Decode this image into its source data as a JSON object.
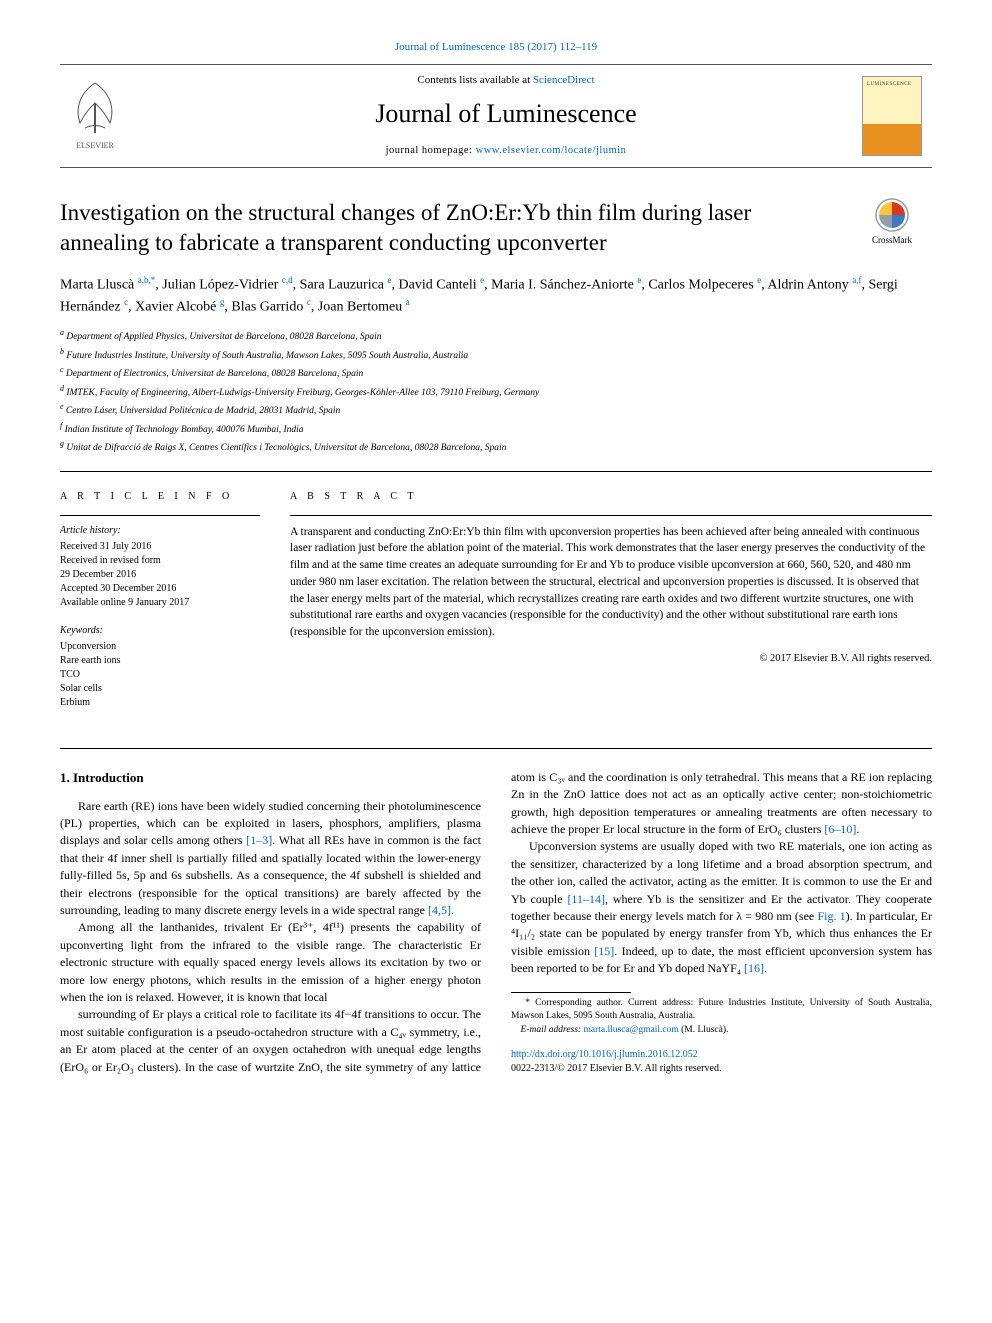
{
  "top_link": {
    "text": "Journal of Luminescence 185 (2017) 112–119",
    "href": "#"
  },
  "masthead": {
    "contents_prefix": "Contents lists available at ",
    "contents_link": "ScienceDirect",
    "journal_name": "Journal of Luminescence",
    "homepage_prefix": "journal homepage: ",
    "homepage_link": "www.elsevier.com/locate/jlumin",
    "elsevier_fill": "#ff7a00",
    "cover_top": "#fff4c0",
    "cover_bottom": "#e89020"
  },
  "crossmark_label": "CrossMark",
  "title": "Investigation on the structural changes of ZnO:Er:Yb thin film during laser annealing to fabricate a transparent conducting upconverter",
  "authors_html": "Marta Lluscà <sup>a,b,*</sup>, Julian López-Vidrier <sup>c,d</sup>, Sara Lauzurica <sup>e</sup>, David Canteli <sup>e</sup>, Maria I. Sánchez-Aniorte <sup>e</sup>, Carlos Molpeceres <sup>e</sup>, Aldrin Antony <sup>a,f</sup>, Sergi Hernández <sup>c</sup>, Xavier Alcobé <sup>g</sup>, Blas Garrido <sup>c</sup>, Joan Bertomeu <sup>a</sup>",
  "affiliations": [
    {
      "sup": "a",
      "text": "Department of Applied Physics, Universitat de Barcelona, 08028 Barcelona, Spain"
    },
    {
      "sup": "b",
      "text": "Future Industries Institute, University of South Australia, Mawson Lakes, 5095 South Australia, Australia"
    },
    {
      "sup": "c",
      "text": "Department of Electronics, Universitat de Barcelona, 08028 Barcelona, Spain"
    },
    {
      "sup": "d",
      "text": "IMTEK, Faculty of Engineering, Albert-Ludwigs-University Freiburg, Georges-Köhler-Allee 103, 79110 Freiburg, Germany"
    },
    {
      "sup": "e",
      "text": "Centro Láser, Universidad Politécnica de Madrid, 28031 Madrid, Spain"
    },
    {
      "sup": "f",
      "text": "Indian Institute of Technology Bombay, 400076 Mumbai, India"
    },
    {
      "sup": "g",
      "text": "Unitat de Difracció de Raigs X, Centres Científics i Tecnològics, Universitat de Barcelona, 08028 Barcelona, Spain"
    }
  ],
  "article_info": {
    "head": "A R T I C L E  I N F O",
    "history_label": "Article history:",
    "history": [
      "Received 31 July 2016",
      "Received in revised form",
      "29 December 2016",
      "Accepted 30 December 2016",
      "Available online 9 January 2017"
    ],
    "keywords_label": "Keywords:",
    "keywords": [
      "Upconversion",
      "Rare earth ions",
      "TCO",
      "Solar cells",
      "Erbium"
    ]
  },
  "abstract": {
    "head": "A B S T R A C T",
    "text": "A transparent and conducting ZnO:Er:Yb thin film with upconversion properties has been achieved after being annealed with continuous laser radiation just before the ablation point of the material. This work demonstrates that the laser energy preserves the conductivity of the film and at the same time creates an adequate surrounding for Er and Yb to produce visible upconversion at 660, 560, 520, and 480 nm under 980 nm laser excitation. The relation between the structural, electrical and upconversion properties is discussed. It is observed that the laser energy melts part of the material, which recrystallizes creating rare earth oxides and two different wurtzite structures, one with substitutional rare earths and oxygen vacancies (responsible for the conductivity) and the other without substitutional rare earth ions (responsible for the upconversion emission).",
    "copyright": "© 2017 Elsevier B.V. All rights reserved."
  },
  "intro": {
    "heading": "1.  Introduction",
    "paragraphs": [
      "Rare earth (RE) ions have been widely studied concerning their photoluminescence (PL) properties, which can be exploited in lasers, phosphors, amplifiers, plasma displays and solar cells among others [1–3]. What all REs have in common is the fact that their 4f inner shell is partially filled and spatially located within the lower-energy fully-filled 5s, 5p and 6s subshells. As a consequence, the 4f subshell is shielded and their electrons (responsible for the optical transitions) are barely affected by the surrounding, leading to many discrete energy levels in a wide spectral range [4,5].",
      "Among all the lanthanides, trivalent Er (Er³⁺, 4f¹¹) presents the capability of upconverting light from the infrared to the visible range. The characteristic Er electronic structure with equally spaced energy levels allows its excitation by two or more low energy photons, which results in the emission of a higher energy photon when the ion is relaxed. However, it is known that local",
      "surrounding of Er plays a critical role to facilitate its 4f−4f transitions to occur. The most suitable configuration is a pseudo-octahedron structure with a C₄ᵥ symmetry, i.e., an Er atom placed at the center of an oxygen octahedron with unequal edge lengths (ErO₆ or Er₂O₃ clusters). In the case of wurtzite ZnO, the site symmetry of any lattice atom is C₃ᵥ and the coordination is only tetrahedral. This means that a RE ion replacing Zn in the ZnO lattice does not act as an optically active center; non-stoichiometric growth, high deposition temperatures or annealing treatments are often necessary to achieve the proper Er local structure in the form of ErO₆ clusters [6–10].",
      "Upconversion systems are usually doped with two RE materials, one ion acting as the sensitizer, characterized by a long lifetime and a broad absorption spectrum, and the other ion, called the activator, acting as the emitter. It is common to use the Er and Yb couple [11–14], where Yb is the sensitizer and Er the activator. They cooperate together because their energy levels match for λ = 980 nm (see Fig. 1). In particular, Er ⁴I₁₁/₂ state can be populated by energy transfer from Yb, which thus enhances the Er visible emission [15]. Indeed, up to date, the most efficient upconversion system has been reported to be for Er and Yb doped NaYF₄ [16]."
    ]
  },
  "footnotes": {
    "corr": "* Corresponding author. Current address: Future Industries Institute, University of South Australia, Mawson Lakes, 5095 South Australia, Australia.",
    "email_label": "E-mail address: ",
    "email": "marta.llusca@gmail.com",
    "email_suffix": " (M. Lluscà)."
  },
  "doi": {
    "link": "http://dx.doi.org/10.1016/j.jlumin.2016.12.052",
    "line2": "0022-2313/© 2017 Elsevier B.V. All rights reserved."
  },
  "colors": {
    "link": "#0066cc",
    "rule": "#000000",
    "elsevier_orange": "#ff7a00",
    "crossmark_red": "#d9381e",
    "crossmark_yellow": "#f9c440",
    "crossmark_blue": "#3b7bbf",
    "crossmark_gray": "#94a0a8"
  }
}
